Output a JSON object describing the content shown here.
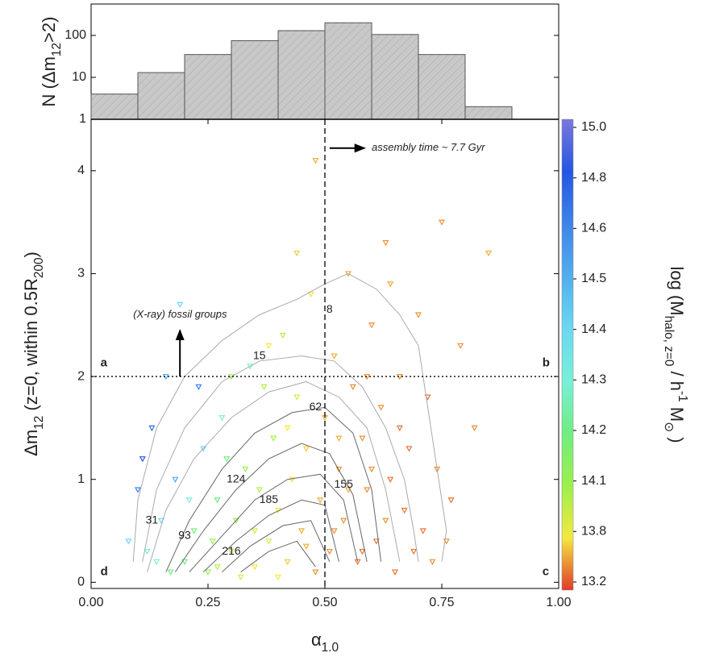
{
  "chart_data": [
    {
      "type": "histogram",
      "bins": [
        0,
        0.1,
        0.2,
        0.3,
        0.4,
        0.5,
        0.6,
        0.7,
        0.8,
        0.9
      ],
      "counts": [
        4,
        13,
        35,
        75,
        130,
        200,
        105,
        35,
        2
      ],
      "color": "#c8c8c8",
      "log_y": true,
      "xlim": [
        0,
        1
      ],
      "ylim": [
        1,
        560
      ],
      "yticks": [
        1,
        10,
        100
      ],
      "y_label": [
        {
          "text": "N (Δm"
        },
        {
          "sub": "12"
        },
        {
          "text": ">2)"
        }
      ]
    },
    {
      "type": "scatter",
      "x": [
        0.12,
        0.15,
        0.18,
        0.2,
        0.22,
        0.24,
        0.25,
        0.27,
        0.28,
        0.3,
        0.31,
        0.33,
        0.34,
        0.35,
        0.36,
        0.38,
        0.39,
        0.4,
        0.41,
        0.42,
        0.43,
        0.44,
        0.45,
        0.46,
        0.47,
        0.48,
        0.49,
        0.5,
        0.51,
        0.52,
        0.53,
        0.54,
        0.55,
        0.56,
        0.57,
        0.58,
        0.59,
        0.6,
        0.61,
        0.62,
        0.63,
        0.64,
        0.65,
        0.66,
        0.67,
        0.68,
        0.7,
        0.71,
        0.72,
        0.74,
        0.75,
        0.77,
        0.79,
        0.82,
        0.85,
        0.1,
        0.13,
        0.16,
        0.08,
        0.19,
        0.21,
        0.23,
        0.26,
        0.29,
        0.32,
        0.37,
        0.4,
        0.44,
        0.48,
        0.52,
        0.55,
        0.58,
        0.6,
        0.63,
        0.66,
        0.69,
        0.73,
        0.76,
        0.35,
        0.27,
        0.17,
        0.46,
        0.53,
        0.59,
        0.64,
        0.42,
        0.38,
        0.3,
        0.14,
        0.11
      ],
      "y": [
        0.3,
        0.6,
        1.0,
        0.2,
        0.5,
        1.3,
        0.1,
        0.8,
        1.6,
        0.3,
        0.6,
        1.1,
        2.1,
        0.15,
        0.9,
        0.4,
        1.4,
        0.7,
        2.4,
        0.2,
        1.0,
        1.8,
        0.5,
        1.3,
        2.8,
        0.1,
        0.8,
        1.6,
        0.3,
        2.2,
        1.1,
        0.6,
        3.0,
        1.9,
        0.2,
        1.4,
        0.9,
        2.5,
        0.4,
        1.7,
        3.3,
        1.0,
        0.1,
        2.0,
        0.7,
        1.3,
        2.6,
        0.5,
        1.8,
        1.1,
        3.5,
        0.8,
        2.3,
        1.5,
        3.2,
        0.9,
        1.5,
        2.0,
        0.4,
        2.7,
        0.8,
        1.9,
        0.4,
        1.2,
        0.05,
        1.9,
        0.05,
        3.2,
        4.1,
        0.5,
        0.9,
        0.3,
        1.1,
        0.6,
        1.5,
        0.3,
        0.2,
        0.4,
        0.5,
        0.15,
        0.1,
        0.35,
        1.4,
        2.0,
        2.9,
        1.5,
        2.3,
        2.0,
        0.2,
        1.2
      ],
      "mass": [
        14.3,
        14.4,
        14.5,
        14.2,
        14.2,
        14.4,
        14.1,
        14.2,
        14.3,
        14.0,
        14.1,
        14.1,
        14.3,
        13.8,
        14.0,
        13.9,
        14.1,
        13.8,
        14.0,
        13.7,
        13.8,
        13.9,
        13.6,
        13.7,
        13.8,
        13.5,
        13.6,
        13.6,
        13.5,
        13.6,
        13.5,
        13.5,
        13.6,
        13.5,
        13.4,
        13.5,
        13.5,
        13.5,
        13.4,
        13.5,
        13.5,
        13.4,
        13.4,
        13.5,
        13.4,
        13.4,
        13.5,
        13.4,
        13.4,
        13.5,
        13.5,
        13.4,
        13.5,
        13.5,
        13.6,
        14.6,
        14.7,
        14.5,
        14.4,
        14.4,
        14.3,
        14.6,
        14.1,
        14.2,
        13.9,
        14.0,
        13.8,
        13.7,
        13.6,
        13.5,
        13.6,
        13.4,
        13.5,
        13.5,
        13.4,
        13.4,
        13.5,
        13.5,
        13.9,
        14.0,
        14.2,
        13.6,
        13.6,
        13.5,
        13.6,
        13.8,
        13.8,
        14.1,
        14.3,
        14.8
      ],
      "xlim": [
        0,
        1
      ],
      "ylim": [
        -0.06,
        4.5
      ],
      "xticks": [
        {
          "value": 0,
          "label": "0.00"
        },
        {
          "value": 0.25,
          "label": "0.25"
        },
        {
          "value": 0.5,
          "label": "0.50"
        },
        {
          "value": 0.75,
          "label": "0.75"
        },
        {
          "value": 1,
          "label": "1.00"
        }
      ],
      "yticks": [
        0,
        1,
        2,
        3,
        4
      ],
      "x_label": [
        {
          "text": "α"
        },
        {
          "sub": "1.0"
        }
      ],
      "y_label": [
        {
          "text": "Δm"
        },
        {
          "sub": "12"
        },
        {
          "text": " (z=0, within 0.5R"
        },
        {
          "sub": "200"
        },
        {
          "text": ")"
        }
      ],
      "vlines": [
        0.5
      ],
      "hlines": [
        2
      ],
      "contours": [
        {
          "level": 8,
          "label_x": 0.51,
          "label_y": 2.65,
          "x": [
            0.09,
            0.1,
            0.14,
            0.2,
            0.28,
            0.36,
            0.44,
            0.5,
            0.55,
            0.61,
            0.66,
            0.7,
            0.72,
            0.74,
            0.76,
            0.75
          ],
          "y": [
            0.2,
            0.8,
            1.5,
            2.0,
            2.35,
            2.6,
            2.75,
            2.9,
            3.0,
            2.85,
            2.6,
            2.3,
            1.7,
            1.1,
            0.5,
            0.2
          ]
        },
        {
          "level": 15,
          "label_x": 0.36,
          "label_y": 2.2,
          "x": [
            0.11,
            0.14,
            0.2,
            0.28,
            0.36,
            0.45,
            0.52,
            0.58,
            0.63,
            0.67,
            0.69,
            0.7
          ],
          "y": [
            0.2,
            0.9,
            1.5,
            1.95,
            2.15,
            2.2,
            2.15,
            1.9,
            1.5,
            1.0,
            0.5,
            0.2
          ]
        },
        {
          "level": 31,
          "label_x": 0.13,
          "label_y": 0.6,
          "x": [
            0.12,
            0.16,
            0.22,
            0.3,
            0.38,
            0.46,
            0.53,
            0.59,
            0.63,
            0.66
          ],
          "y": [
            0.1,
            0.7,
            1.2,
            1.6,
            1.85,
            1.95,
            1.8,
            1.5,
            0.9,
            0.2
          ]
        },
        {
          "level": 62,
          "label_x": 0.48,
          "label_y": 1.7,
          "x": [
            0.16,
            0.21,
            0.28,
            0.35,
            0.43,
            0.5,
            0.56,
            0.6,
            0.62
          ],
          "y": [
            0.1,
            0.6,
            1.1,
            1.45,
            1.65,
            1.7,
            1.45,
            0.9,
            0.2
          ]
        },
        {
          "level": 93,
          "label_x": 0.2,
          "label_y": 0.45,
          "x": [
            0.18,
            0.24,
            0.31,
            0.38,
            0.45,
            0.51,
            0.56,
            0.59
          ],
          "y": [
            0.1,
            0.5,
            0.9,
            1.2,
            1.35,
            1.25,
            0.85,
            0.2
          ]
        },
        {
          "level": 124,
          "label_x": 0.31,
          "label_y": 1.0,
          "x": [
            0.21,
            0.28,
            0.35,
            0.42,
            0.49,
            0.54,
            0.57
          ],
          "y": [
            0.1,
            0.45,
            0.8,
            1.0,
            1.05,
            0.8,
            0.2
          ]
        },
        {
          "level": 155,
          "label_x": 0.54,
          "label_y": 0.95,
          "x": [
            0.24,
            0.31,
            0.38,
            0.45,
            0.5,
            0.53
          ],
          "y": [
            0.1,
            0.4,
            0.65,
            0.8,
            0.75,
            0.2
          ]
        },
        {
          "level": 185,
          "label_x": 0.38,
          "label_y": 0.8,
          "x": [
            0.28,
            0.34,
            0.41,
            0.47,
            0.51
          ],
          "y": [
            0.1,
            0.35,
            0.55,
            0.6,
            0.2
          ]
        },
        {
          "level": 216,
          "label_x": 0.3,
          "label_y": 0.3,
          "x": [
            0.32,
            0.38,
            0.44,
            0.48
          ],
          "y": [
            0.1,
            0.3,
            0.4,
            0.15
          ]
        }
      ],
      "annotations": [
        {
          "text": "assembly time ~ 7.7 Gyr",
          "x": 0.6,
          "y": 4.22,
          "style": "italic",
          "arrow_from": [
            0.51,
            4.22
          ],
          "arrow_to": [
            0.585,
            4.22
          ]
        },
        {
          "text": "(X-ray) fossil groups",
          "x": 0.09,
          "y": 2.6,
          "style": "italic",
          "arrow_from": [
            0.19,
            2.0
          ],
          "arrow_to": [
            0.19,
            2.45
          ]
        },
        {
          "text": "a",
          "x": 0.02,
          "y": 2.13,
          "style": "bold"
        },
        {
          "text": "b",
          "x": 0.965,
          "y": 2.13,
          "style": "bold"
        },
        {
          "text": "c",
          "x": 0.965,
          "y": 0.1,
          "style": "bold"
        },
        {
          "text": "d",
          "x": 0.02,
          "y": 0.1,
          "style": "bold"
        }
      ],
      "colorbar": {
        "label": [
          {
            "text": "log (M"
          },
          {
            "sub": "halo, z=0"
          },
          {
            "text": " / h"
          },
          {
            "sup": "-1"
          },
          {
            "text": " M"
          },
          {
            "sub": "⊙"
          },
          {
            "text": " )"
          }
        ],
        "ticks": [
          13.2,
          13.8,
          14.1,
          14.2,
          14.3,
          14.4,
          14.5,
          14.6,
          14.8,
          {
            "value": 15,
            "label": "15.0"
          }
        ],
        "colors": [
          "#e03a2a",
          "#f4e840",
          "#9cf04c",
          "#70ee80",
          "#78f0d8",
          "#6ad8f2",
          "#52aef0",
          "#3e84e8",
          "#2456e4",
          "#7a78dc"
        ]
      }
    }
  ]
}
